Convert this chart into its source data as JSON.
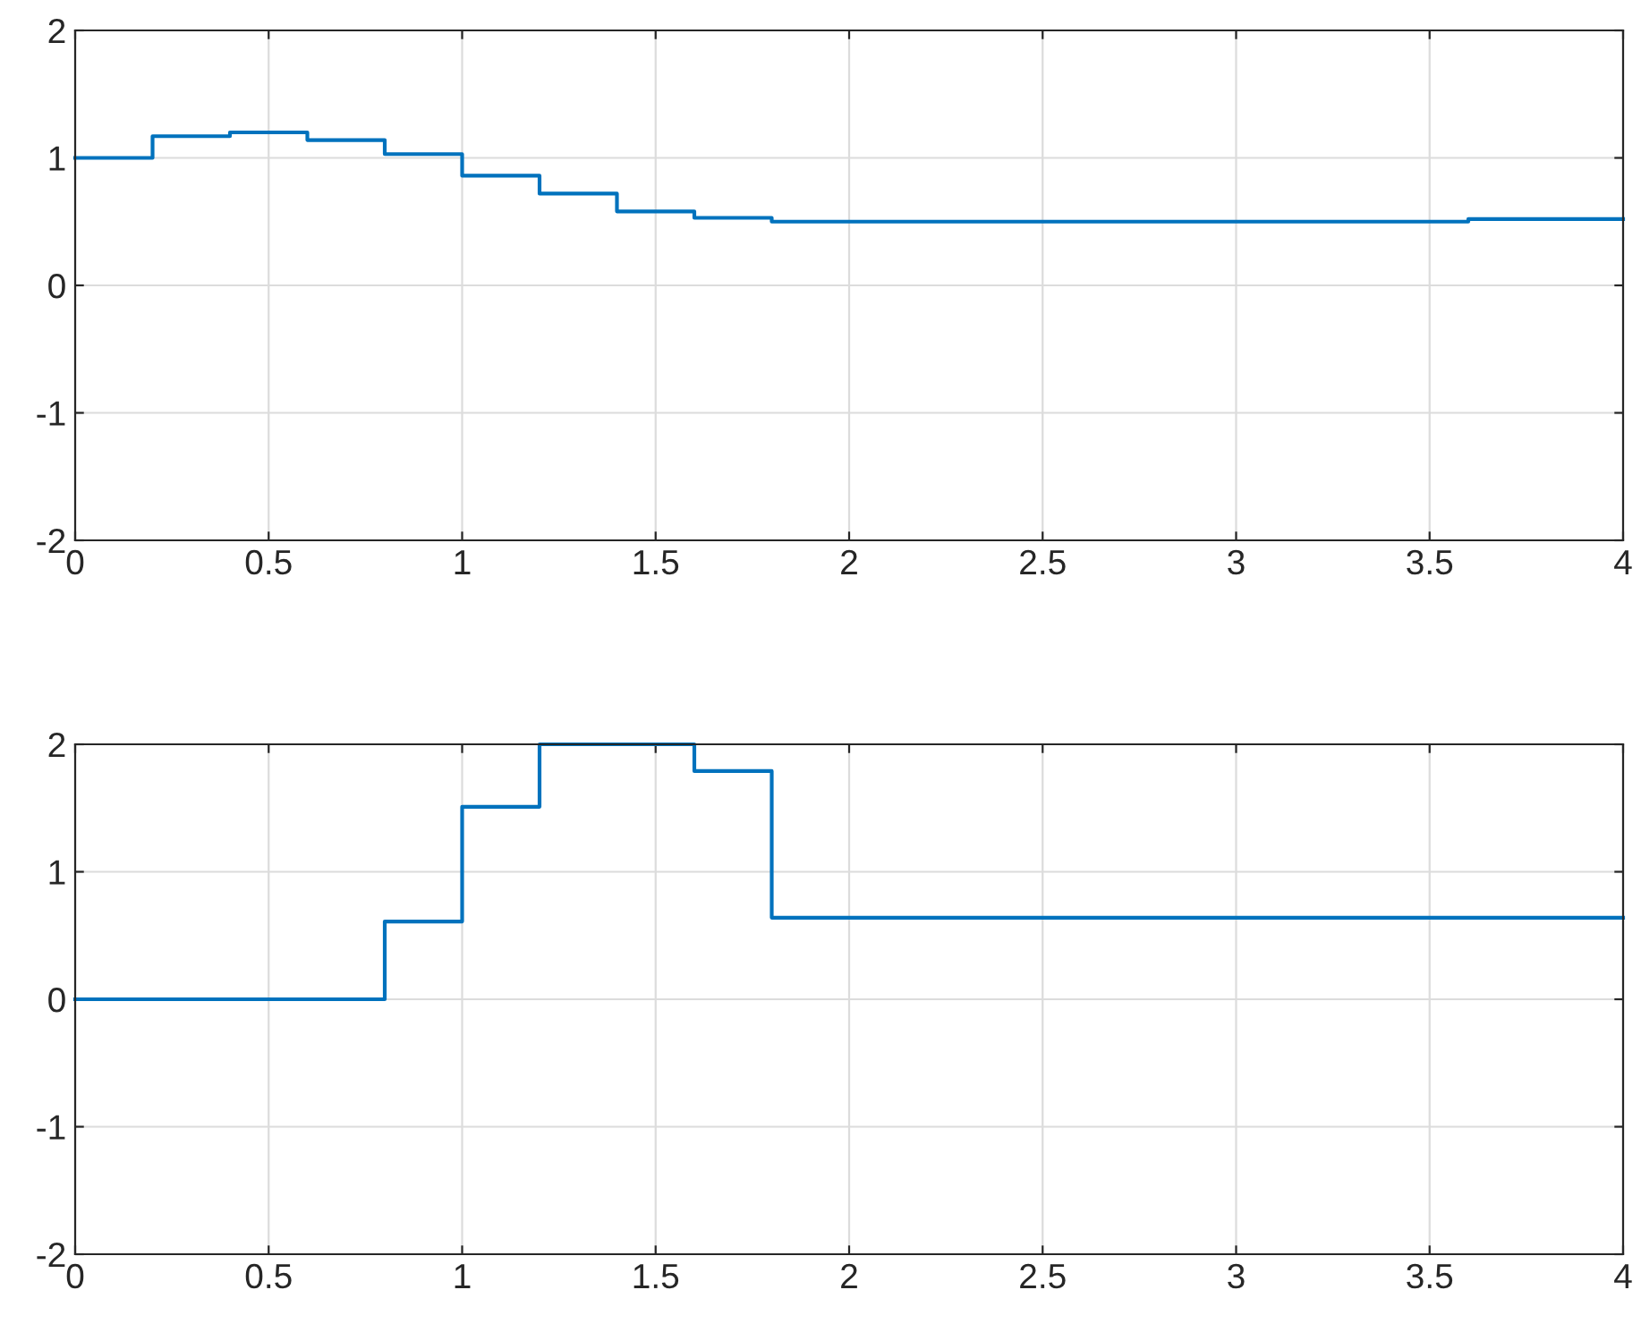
{
  "chart_data": [
    {
      "type": "step",
      "x": [
        0,
        0.2,
        0.4,
        0.6,
        0.8,
        1.0,
        1.2,
        1.4,
        1.6,
        1.8,
        3.6,
        4
      ],
      "series": [
        {
          "color": "#0072bd",
          "values": [
            1.0,
            1.17,
            1.2,
            1.14,
            1.03,
            0.86,
            0.72,
            0.58,
            0.53,
            0.5,
            0.52,
            0.52
          ]
        }
      ],
      "xlim": [
        0,
        4
      ],
      "ylim": [
        -2,
        2
      ],
      "xticks": [
        0,
        0.5,
        1,
        1.5,
        2,
        2.5,
        3,
        3.5,
        4
      ],
      "yticks": [
        -2,
        -1,
        0,
        1,
        2
      ],
      "grid": true,
      "legend": false
    },
    {
      "type": "step",
      "x": [
        0,
        0.8,
        1.0,
        1.2,
        1.6,
        1.8,
        4
      ],
      "series": [
        {
          "color": "#0072bd",
          "values": [
            0,
            0.61,
            1.51,
            2,
            1.79,
            0.64,
            0.64
          ]
        }
      ],
      "xlim": [
        0,
        4
      ],
      "ylim": [
        -2,
        2
      ],
      "xticks": [
        0,
        0.5,
        1,
        1.5,
        2,
        2.5,
        3,
        3.5,
        4
      ],
      "yticks": [
        -2,
        -1,
        0,
        1,
        2
      ],
      "grid": true,
      "legend": false
    }
  ]
}
